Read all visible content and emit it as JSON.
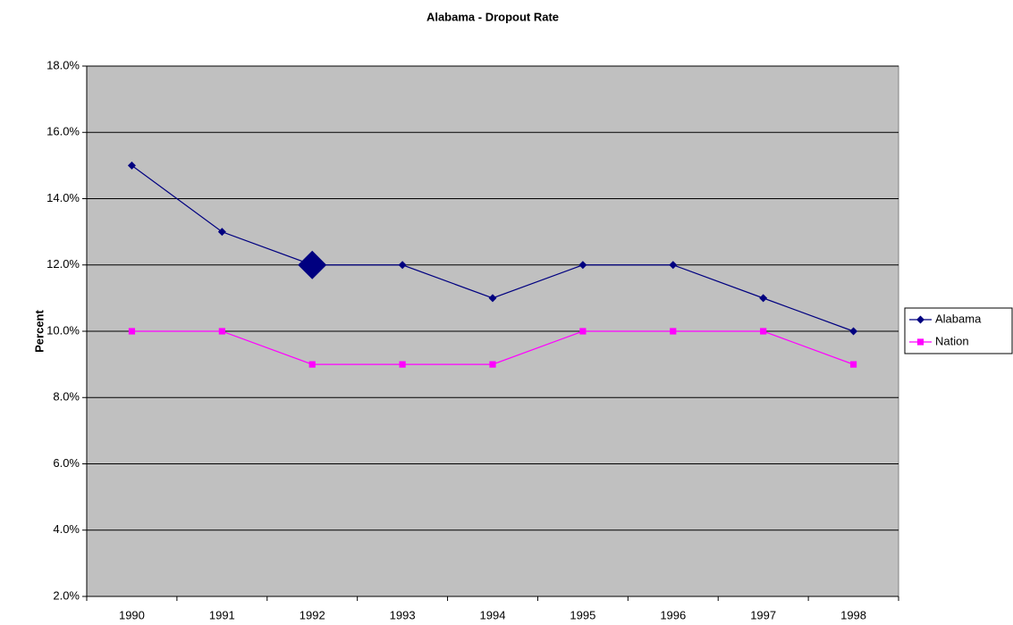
{
  "chart_data": {
    "type": "line",
    "title": "Alabama - Dropout Rate",
    "y_label": "Percent",
    "categories": [
      "1990",
      "1991",
      "1992",
      "1993",
      "1994",
      "1995",
      "1996",
      "1997",
      "1998"
    ],
    "series": [
      {
        "name": "Alabama",
        "color": "#000080",
        "marker": "diamond",
        "values": [
          15,
          13,
          12,
          12,
          11,
          12,
          12,
          11,
          10
        ]
      },
      {
        "name": "Nation",
        "color": "#ff00ff",
        "marker": "square",
        "values": [
          10,
          10,
          9,
          9,
          9,
          10,
          10,
          10,
          9
        ]
      }
    ],
    "highlight_point": [
      0,
      2
    ],
    "ylim": [
      2,
      18
    ],
    "yticks": [
      {
        "value": 2,
        "label": "2.0%"
      },
      {
        "value": 4,
        "label": "4.0%"
      },
      {
        "value": 6,
        "label": "6.0%"
      },
      {
        "value": 8,
        "label": "8.0%"
      },
      {
        "value": 10,
        "label": "10.0%"
      },
      {
        "value": 12,
        "label": "12.0%"
      },
      {
        "value": 14,
        "label": "14.0%"
      },
      {
        "value": 16,
        "label": "16.0%"
      },
      {
        "value": 18,
        "label": "18.0%"
      }
    ],
    "grid": true,
    "legend": "right",
    "plot_background": "#c0c0c0"
  }
}
